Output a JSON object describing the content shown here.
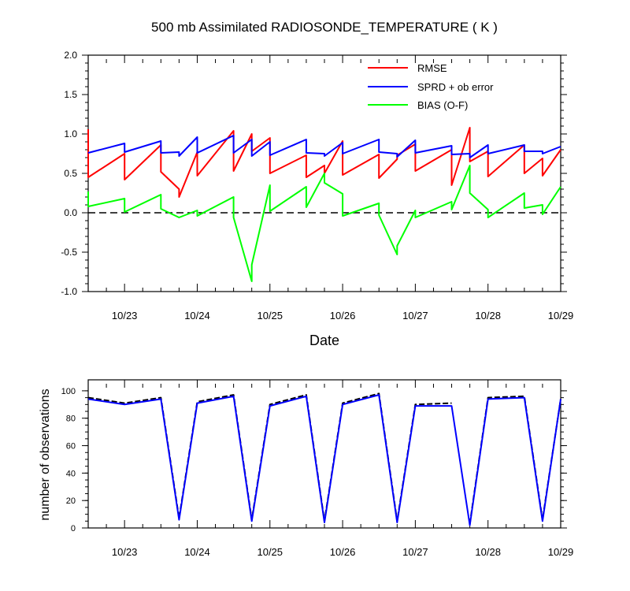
{
  "chart_data": [
    {
      "type": "line",
      "title": "500 mb Assimilated RADIOSONDE_TEMPERATURE ( K )",
      "xlabel": "Date",
      "ylabel": "",
      "xlim": [
        "2010-10-22T12:00",
        "2010-10-29T00:00"
      ],
      "ylim": [
        -1.0,
        2.0
      ],
      "x_tick_labels": [
        "10/23",
        "10/24",
        "10/25",
        "10/26",
        "10/27",
        "10/28",
        "10/29"
      ],
      "y_tick_labels": [
        "2.0",
        "1.5",
        "1.0",
        "0.5",
        "0.0",
        "-0.5",
        "-1.0"
      ],
      "legend_position": "top-right",
      "reference_line": {
        "y": 0.0,
        "style": "dashed"
      },
      "series": [
        {
          "name": "RMSE",
          "color": "#ff0000",
          "points": [
            [
              "2010-10-22T12:00",
              1.06
            ],
            [
              "2010-10-22T12:00",
              0.45
            ],
            [
              "2010-10-23T00:00",
              0.75
            ],
            [
              "2010-10-23T00:00",
              0.42
            ],
            [
              "2010-10-23T12:00",
              0.86
            ],
            [
              "2010-10-23T12:00",
              0.52
            ],
            [
              "2010-10-23T18:00",
              0.3
            ],
            [
              "2010-10-23T18:00",
              0.2
            ],
            [
              "2010-10-24T00:00",
              0.77
            ],
            [
              "2010-10-24T00:00",
              0.47
            ],
            [
              "2010-10-24T12:00",
              1.04
            ],
            [
              "2010-10-24T12:00",
              0.53
            ],
            [
              "2010-10-24T18:00",
              1.0
            ],
            [
              "2010-10-24T18:00",
              0.78
            ],
            [
              "2010-10-25T00:00",
              0.95
            ],
            [
              "2010-10-25T00:00",
              0.5
            ],
            [
              "2010-10-25T12:00",
              0.73
            ],
            [
              "2010-10-25T12:00",
              0.45
            ],
            [
              "2010-10-25T18:00",
              0.6
            ],
            [
              "2010-10-25T18:00",
              0.5
            ],
            [
              "2010-10-26T00:00",
              0.91
            ],
            [
              "2010-10-26T00:00",
              0.48
            ],
            [
              "2010-10-26T12:00",
              0.74
            ],
            [
              "2010-10-26T12:00",
              0.44
            ],
            [
              "2010-10-26T18:00",
              0.68
            ],
            [
              "2010-10-26T18:00",
              0.73
            ],
            [
              "2010-10-27T00:00",
              0.87
            ],
            [
              "2010-10-27T00:00",
              0.53
            ],
            [
              "2010-10-27T12:00",
              0.8
            ],
            [
              "2010-10-27T12:00",
              0.35
            ],
            [
              "2010-10-27T18:00",
              1.08
            ],
            [
              "2010-10-27T18:00",
              0.65
            ],
            [
              "2010-10-28T00:00",
              0.78
            ],
            [
              "2010-10-28T00:00",
              0.46
            ],
            [
              "2010-10-28T12:00",
              0.86
            ],
            [
              "2010-10-28T12:00",
              0.5
            ],
            [
              "2010-10-28T18:00",
              0.69
            ],
            [
              "2010-10-28T18:00",
              0.47
            ],
            [
              "2010-10-29T00:00",
              0.8
            ]
          ]
        },
        {
          "name": "SPRD + ob error",
          "color": "#0000ff",
          "points": [
            [
              "2010-10-22T12:00",
              0.76
            ],
            [
              "2010-10-23T00:00",
              0.88
            ],
            [
              "2010-10-23T00:00",
              0.77
            ],
            [
              "2010-10-23T12:00",
              0.91
            ],
            [
              "2010-10-23T12:00",
              0.76
            ],
            [
              "2010-10-23T18:00",
              0.77
            ],
            [
              "2010-10-23T18:00",
              0.72
            ],
            [
              "2010-10-24T00:00",
              0.96
            ],
            [
              "2010-10-24T00:00",
              0.76
            ],
            [
              "2010-10-24T12:00",
              0.98
            ],
            [
              "2010-10-24T12:00",
              0.76
            ],
            [
              "2010-10-24T18:00",
              0.93
            ],
            [
              "2010-10-24T18:00",
              0.72
            ],
            [
              "2010-10-25T00:00",
              0.9
            ],
            [
              "2010-10-25T00:00",
              0.73
            ],
            [
              "2010-10-25T12:00",
              0.93
            ],
            [
              "2010-10-25T12:00",
              0.76
            ],
            [
              "2010-10-25T18:00",
              0.75
            ],
            [
              "2010-10-25T18:00",
              0.72
            ],
            [
              "2010-10-26T00:00",
              0.89
            ],
            [
              "2010-10-26T00:00",
              0.75
            ],
            [
              "2010-10-26T12:00",
              0.93
            ],
            [
              "2010-10-26T12:00",
              0.77
            ],
            [
              "2010-10-26T18:00",
              0.75
            ],
            [
              "2010-10-26T18:00",
              0.71
            ],
            [
              "2010-10-27T00:00",
              0.92
            ],
            [
              "2010-10-27T00:00",
              0.76
            ],
            [
              "2010-10-27T12:00",
              0.85
            ],
            [
              "2010-10-27T12:00",
              0.74
            ],
            [
              "2010-10-27T18:00",
              0.75
            ],
            [
              "2010-10-27T18:00",
              0.7
            ],
            [
              "2010-10-28T00:00",
              0.86
            ],
            [
              "2010-10-28T00:00",
              0.75
            ],
            [
              "2010-10-28T12:00",
              0.86
            ],
            [
              "2010-10-28T12:00",
              0.78
            ],
            [
              "2010-10-28T18:00",
              0.78
            ],
            [
              "2010-10-28T18:00",
              0.75
            ],
            [
              "2010-10-29T00:00",
              0.84
            ]
          ]
        },
        {
          "name": "BIAS (O-F)",
          "color": "#00ff00",
          "points": [
            [
              "2010-10-22T12:00",
              0.27
            ],
            [
              "2010-10-22T12:00",
              0.08
            ],
            [
              "2010-10-23T00:00",
              0.18
            ],
            [
              "2010-10-23T00:00",
              0.01
            ],
            [
              "2010-10-23T12:00",
              0.23
            ],
            [
              "2010-10-23T12:00",
              0.05
            ],
            [
              "2010-10-23T18:00",
              -0.06
            ],
            [
              "2010-10-24T00:00",
              0.03
            ],
            [
              "2010-10-24T00:00",
              -0.04
            ],
            [
              "2010-10-24T12:00",
              0.2
            ],
            [
              "2010-10-24T12:00",
              -0.06
            ],
            [
              "2010-10-24T18:00",
              -0.87
            ],
            [
              "2010-10-24T18:00",
              -0.66
            ],
            [
              "2010-10-25T00:00",
              0.35
            ],
            [
              "2010-10-25T00:00",
              0.02
            ],
            [
              "2010-10-25T12:00",
              0.33
            ],
            [
              "2010-10-25T12:00",
              0.07
            ],
            [
              "2010-10-25T18:00",
              0.5
            ],
            [
              "2010-10-25T18:00",
              0.38
            ],
            [
              "2010-10-26T00:00",
              0.24
            ],
            [
              "2010-10-26T00:00",
              -0.04
            ],
            [
              "2010-10-26T12:00",
              0.12
            ],
            [
              "2010-10-26T12:00",
              -0.03
            ],
            [
              "2010-10-26T18:00",
              -0.53
            ],
            [
              "2010-10-26T18:00",
              -0.42
            ],
            [
              "2010-10-27T00:00",
              0.03
            ],
            [
              "2010-10-27T00:00",
              -0.06
            ],
            [
              "2010-10-27T12:00",
              0.14
            ],
            [
              "2010-10-27T12:00",
              0.04
            ],
            [
              "2010-10-27T18:00",
              0.6
            ],
            [
              "2010-10-27T18:00",
              0.25
            ],
            [
              "2010-10-28T00:00",
              0.04
            ],
            [
              "2010-10-28T00:00",
              -0.06
            ],
            [
              "2010-10-28T12:00",
              0.25
            ],
            [
              "2010-10-28T12:00",
              0.06
            ],
            [
              "2010-10-28T18:00",
              0.1
            ],
            [
              "2010-10-28T18:00",
              -0.02
            ],
            [
              "2010-10-29T00:00",
              0.33
            ]
          ]
        }
      ]
    },
    {
      "type": "line",
      "title": "",
      "xlabel": "",
      "ylabel": "number of observations",
      "xlim": [
        "2010-10-22T12:00",
        "2010-10-29T00:00"
      ],
      "ylim": [
        0,
        108
      ],
      "x_tick_labels": [
        "10/23",
        "10/24",
        "10/25",
        "10/26",
        "10/27",
        "10/28",
        "10/29"
      ],
      "y_tick_labels": [
        "100",
        "80",
        "60",
        "40",
        "20",
        "0"
      ],
      "series": [
        {
          "color": "#000000",
          "style": "dashed",
          "points": [
            [
              "2010-10-22T12:00",
              95
            ],
            [
              "2010-10-23T00:00",
              91
            ],
            [
              "2010-10-23T12:00",
              95
            ],
            [
              "2010-10-23T18:00",
              7
            ],
            [
              "2010-10-24T00:00",
              92
            ],
            [
              "2010-10-24T12:00",
              97
            ],
            [
              "2010-10-24T18:00",
              6
            ],
            [
              "2010-10-25T00:00",
              90
            ],
            [
              "2010-10-25T12:00",
              97
            ],
            [
              "2010-10-25T18:00",
              5
            ],
            [
              "2010-10-26T00:00",
              91
            ],
            [
              "2010-10-26T12:00",
              98
            ],
            [
              "2010-10-26T18:00",
              5
            ],
            [
              "2010-10-27T00:00",
              90
            ],
            [
              "2010-10-27T12:00",
              91
            ]
          ],
          "points_after_gap": [
            [
              "2010-10-27T18:00",
              3
            ],
            [
              "2010-10-28T00:00",
              95
            ],
            [
              "2010-10-28T12:00",
              96
            ],
            [
              "2010-10-28T18:00",
              6
            ],
            [
              "2010-10-29T00:00",
              94
            ]
          ]
        },
        {
          "color": "#0000ff",
          "style": "solid",
          "points": [
            [
              "2010-10-22T12:00",
              94
            ],
            [
              "2010-10-23T00:00",
              90
            ],
            [
              "2010-10-23T12:00",
              94
            ],
            [
              "2010-10-23T18:00",
              6
            ],
            [
              "2010-10-24T00:00",
              91
            ],
            [
              "2010-10-24T12:00",
              96
            ],
            [
              "2010-10-24T18:00",
              5
            ],
            [
              "2010-10-25T00:00",
              89
            ],
            [
              "2010-10-25T12:00",
              96
            ],
            [
              "2010-10-25T18:00",
              4
            ],
            [
              "2010-10-26T00:00",
              90
            ],
            [
              "2010-10-26T12:00",
              97
            ],
            [
              "2010-10-26T18:00",
              4
            ],
            [
              "2010-10-27T00:00",
              89
            ],
            [
              "2010-10-27T12:00",
              89
            ],
            [
              "2010-10-27T18:00",
              2
            ],
            [
              "2010-10-28T00:00",
              94
            ],
            [
              "2010-10-28T12:00",
              95
            ],
            [
              "2010-10-28T18:00",
              5
            ],
            [
              "2010-10-29T00:00",
              94
            ]
          ]
        }
      ]
    }
  ]
}
